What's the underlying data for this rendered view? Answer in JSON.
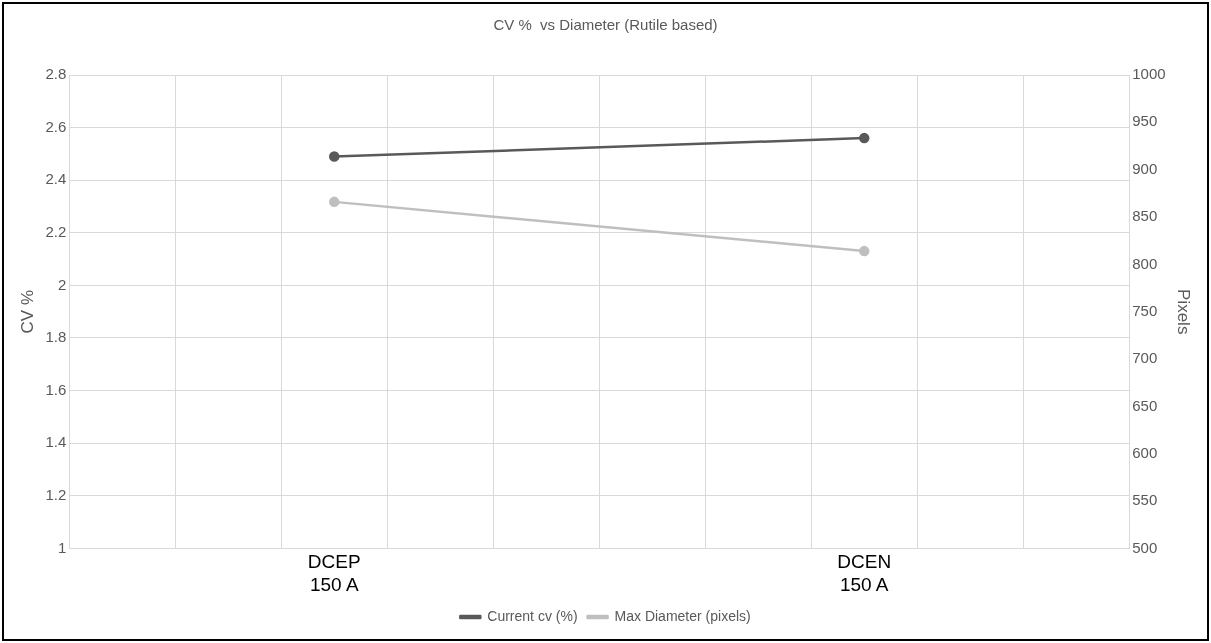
{
  "chart_data": {
    "type": "line",
    "title": "CV %  vs Diameter (Rutile based)",
    "ylabel": "CV %",
    "y2label": "Pixels",
    "categories": [
      null,
      null,
      "DCEP\n150 A",
      null,
      null,
      null,
      null,
      "DCEN\n150 A",
      null,
      null
    ],
    "series": [
      {
        "name": "Current cv (%)",
        "color": "#595959",
        "values": [
          null,
          null,
          2.49,
          null,
          null,
          null,
          null,
          2.56,
          null,
          null
        ]
      },
      {
        "name": "Max Diameter (pixels)",
        "color": "#bfbfbf",
        "axis": "y2",
        "values": [
          null,
          null,
          866,
          null,
          null,
          null,
          null,
          814,
          null,
          null
        ]
      }
    ],
    "ylim": [
      1,
      2.8
    ],
    "yticks": [
      1,
      1.2,
      1.4,
      1.6,
      1.8,
      2,
      2.2,
      2.4,
      2.6,
      2.8
    ],
    "y2lim": [
      500,
      1000
    ],
    "y2ticks": [
      500,
      550,
      600,
      650,
      700,
      750,
      800,
      850,
      900,
      950,
      1000
    ],
    "grid": true,
    "legend": "bottom",
    "marker": "circle",
    "line_style": "solid"
  }
}
